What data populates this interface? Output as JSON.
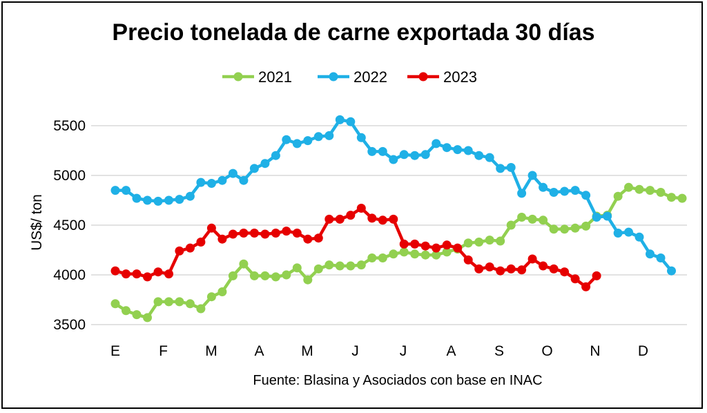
{
  "chart_data": {
    "type": "line",
    "title": "Precio tonelada de carne exportada 30 días",
    "ylabel": "US$/ ton",
    "xlabel": "",
    "source": "Fuente: Blasina y Asociados con base en INAC",
    "ylim": [
      3500,
      5600
    ],
    "yticks": [
      3500,
      4000,
      4500,
      5000,
      5500
    ],
    "grid": true,
    "legend_position": "top",
    "months": [
      "E",
      "F",
      "M",
      "A",
      "M",
      "J",
      "J",
      "A",
      "S",
      "O",
      "N",
      "D"
    ],
    "series": [
      {
        "name": "2021",
        "color": "#92d050",
        "values": [
          3710,
          3640,
          3600,
          3570,
          3730,
          3730,
          3730,
          3710,
          3660,
          3780,
          3830,
          3990,
          4110,
          3990,
          3990,
          3980,
          4000,
          4070,
          3950,
          4060,
          4100,
          4090,
          4090,
          4100,
          4170,
          4170,
          4210,
          4230,
          4210,
          4200,
          4200,
          4230,
          4260,
          4320,
          4330,
          4350,
          4340,
          4500,
          4580,
          4560,
          4550,
          4460,
          4460,
          4470,
          4490,
          4590,
          4600,
          4790,
          4880,
          4860,
          4850,
          4830,
          4780,
          4770
        ]
      },
      {
        "name": "2022",
        "color": "#1fb0e6",
        "values": [
          4850,
          4850,
          4770,
          4750,
          4740,
          4750,
          4760,
          4790,
          4930,
          4920,
          4950,
          5020,
          4950,
          5070,
          5120,
          5200,
          5360,
          5320,
          5350,
          5390,
          5400,
          5560,
          5540,
          5380,
          5240,
          5240,
          5160,
          5210,
          5200,
          5210,
          5320,
          5280,
          5260,
          5250,
          5200,
          5180,
          5070,
          5080,
          4820,
          5000,
          4880,
          4830,
          4840,
          4850,
          4800,
          4580,
          4590,
          4420,
          4430,
          4380,
          4210,
          4170,
          4040
        ]
      },
      {
        "name": "2023",
        "color": "#e60000",
        "values": [
          4040,
          4010,
          4010,
          3980,
          4030,
          4010,
          4240,
          4270,
          4330,
          4470,
          4360,
          4410,
          4420,
          4420,
          4410,
          4420,
          4440,
          4420,
          4360,
          4370,
          4560,
          4560,
          4600,
          4670,
          4570,
          4550,
          4560,
          4310,
          4310,
          4290,
          4270,
          4300,
          4270,
          4150,
          4060,
          4080,
          4040,
          4060,
          4050,
          4160,
          4090,
          4060,
          4030,
          3960,
          3880,
          3990
        ]
      }
    ]
  }
}
